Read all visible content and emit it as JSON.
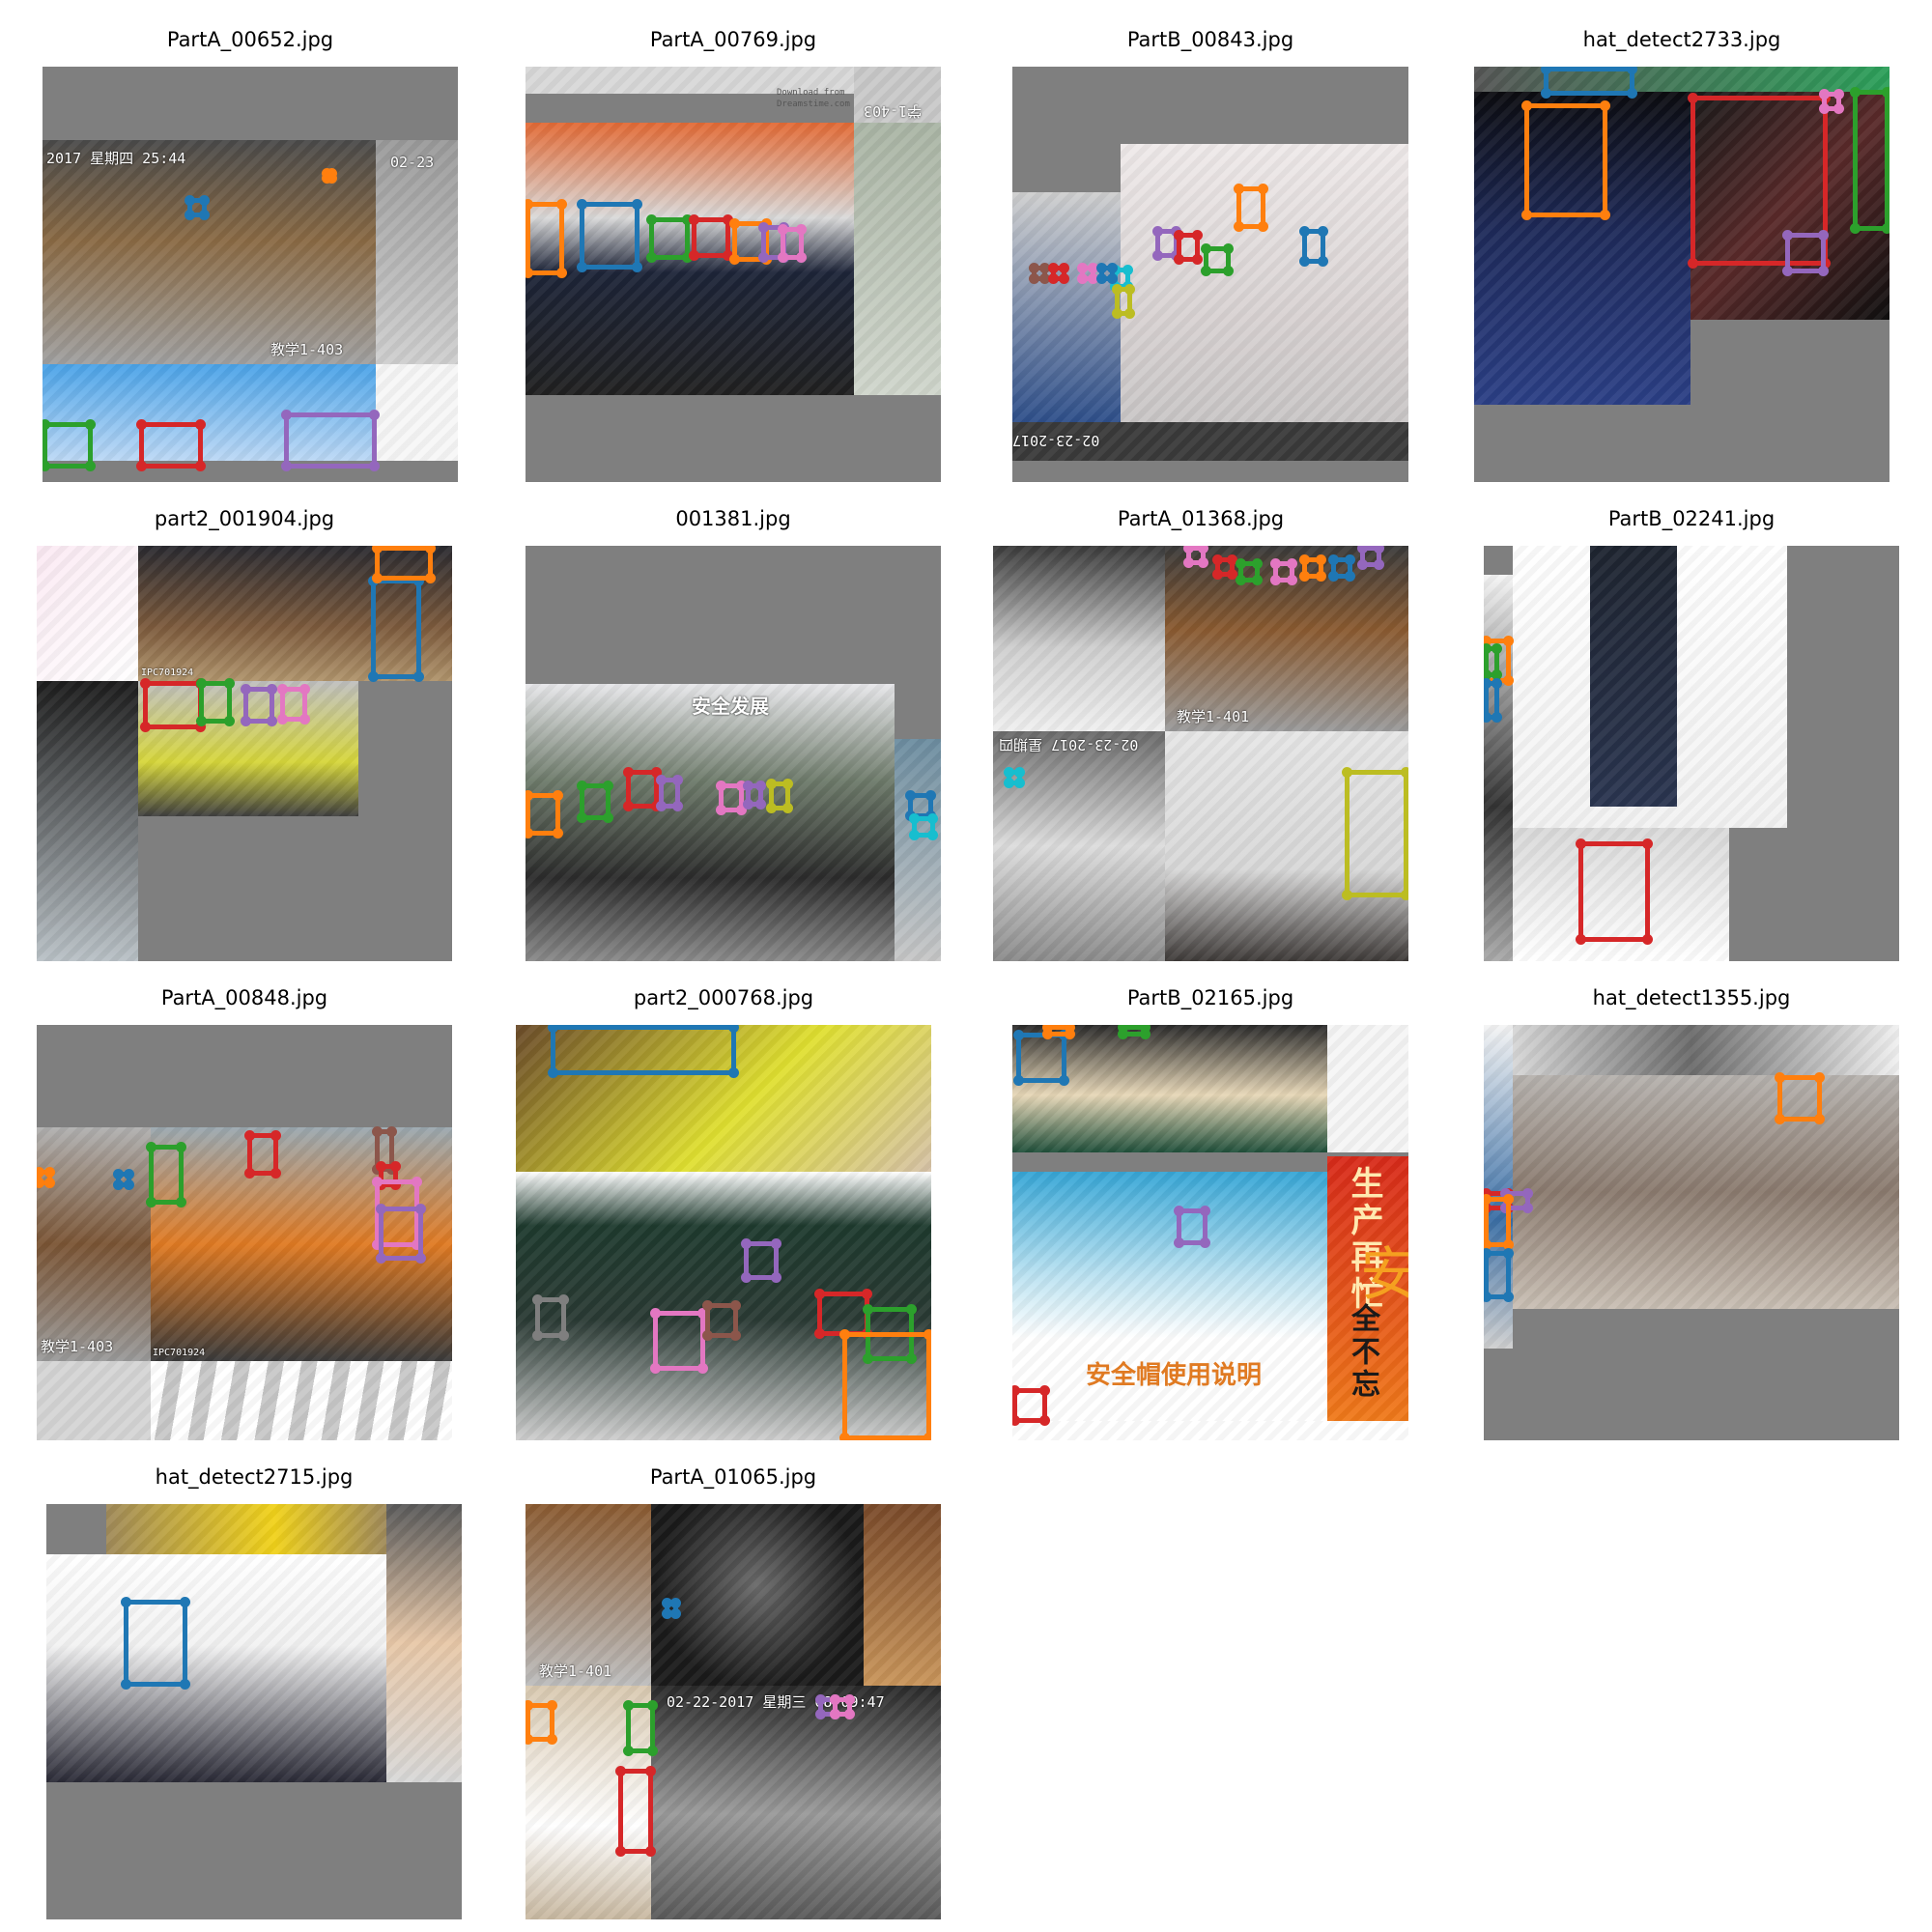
{
  "tiles": [
    {
      "title": "PartA_00652.jpg"
    },
    {
      "title": "PartA_00769.jpg",
      "texts": [
        "Download from",
        "Dreamstime.com",
        "学1-403"
      ]
    },
    {
      "title": "PartB_00843.jpg",
      "texts": [
        "02-23-2017"
      ]
    },
    {
      "title": "hat_detect2733.jpg"
    },
    {
      "title": "part2_001904.jpg",
      "texts": [
        "IPC701924"
      ]
    },
    {
      "title": "001381.jpg",
      "texts": [
        "安全发展"
      ]
    },
    {
      "title": "PartA_01368.jpg",
      "texts": [
        "教学1-401",
        "02-23-2017 星期四"
      ]
    },
    {
      "title": "PartB_02241.jpg"
    },
    {
      "title": "PartA_00848.jpg",
      "texts": [
        "教学1-403",
        "IPC701924"
      ]
    },
    {
      "title": "part2_000768.jpg"
    },
    {
      "title": "PartB_02165.jpg",
      "texts": [
        "安全帽使用说明",
        "生产再忙",
        "全不忘",
        "安"
      ]
    },
    {
      "title": "hat_detect1355.jpg"
    },
    {
      "title": "hat_detect2715.jpg"
    },
    {
      "title": "PartA_01065.jpg",
      "texts": [
        "教学1-401",
        "02-22-2017 星期三 08:09:47"
      ]
    }
  ],
  "overlay_text": {
    "t0_ts": "2017 星期四 25:44",
    "t0_cam": "02-23",
    "t0_room": "教学1-403"
  },
  "colors": {
    "blue": "#1f77b4",
    "orange": "#ff7f0e",
    "green": "#2ca02c",
    "red": "#d62728",
    "purple": "#9467bd",
    "brown": "#8c564b",
    "pink": "#e377c2",
    "gray": "#7f7f7f",
    "olive": "#bcbd22",
    "cyan": "#17becf",
    "pad": "#7f7f7f"
  }
}
